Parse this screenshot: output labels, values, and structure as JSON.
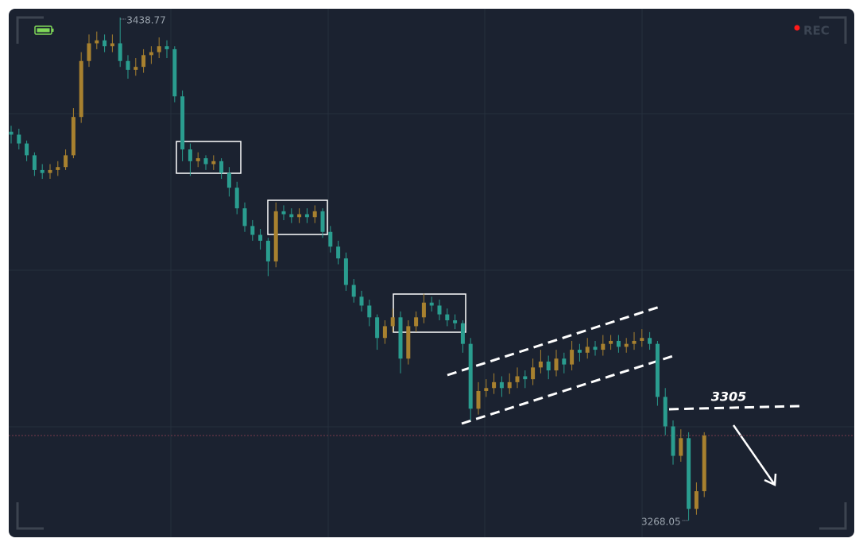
{
  "chart_data": {
    "type": "candlestick",
    "rec_label": "REC",
    "level_label": 3305,
    "up_color": "#a8812f",
    "down_color": "#2a9d8f",
    "ylim": [
      3259.4,
      3444.7
    ],
    "ohlc": [
      [
        3400,
        3402,
        3396,
        3399
      ],
      [
        3399,
        3401,
        3394,
        3396
      ],
      [
        3396,
        3397,
        3390,
        3392
      ],
      [
        3392,
        3393,
        3385,
        3387
      ],
      [
        3387,
        3389,
        3384,
        3386
      ],
      [
        3386,
        3389,
        3384,
        3387
      ],
      [
        3387,
        3390,
        3385,
        3388
      ],
      [
        3388,
        3394,
        3387,
        3392
      ],
      [
        3392,
        3408,
        3391,
        3405
      ],
      [
        3405,
        3427,
        3403,
        3424
      ],
      [
        3424,
        3433,
        3422,
        3430
      ],
      [
        3430,
        3434,
        3428,
        3431
      ],
      [
        3431,
        3433,
        3427,
        3429
      ],
      [
        3429,
        3433,
        3427,
        3430
      ],
      [
        3430,
        3438.77,
        3422,
        3424
      ],
      [
        3424,
        3426,
        3418,
        3421
      ],
      [
        3421,
        3425,
        3419,
        3422
      ],
      [
        3422,
        3428,
        3420,
        3426
      ],
      [
        3426,
        3429,
        3423,
        3427
      ],
      [
        3427,
        3432,
        3425,
        3429
      ],
      [
        3429,
        3431,
        3425,
        3428
      ],
      [
        3428,
        3429,
        3410,
        3412
      ],
      [
        3412,
        3414,
        3390,
        3394
      ],
      [
        3394,
        3396,
        3385,
        3390
      ],
      [
        3390,
        3393,
        3388,
        3391
      ],
      [
        3391,
        3392,
        3387,
        3389
      ],
      [
        3389,
        3392,
        3387,
        3390
      ],
      [
        3390,
        3391,
        3384,
        3386
      ],
      [
        3386,
        3388,
        3378,
        3381
      ],
      [
        3381,
        3383,
        3372,
        3374
      ],
      [
        3374,
        3376,
        3366,
        3368
      ],
      [
        3368,
        3370,
        3363,
        3365
      ],
      [
        3365,
        3367,
        3360,
        3363
      ],
      [
        3363,
        3364,
        3351,
        3356
      ],
      [
        3356,
        3376,
        3354,
        3373
      ],
      [
        3373,
        3375,
        3370,
        3372
      ],
      [
        3372,
        3374,
        3369,
        3371
      ],
      [
        3371,
        3374,
        3369,
        3372
      ],
      [
        3372,
        3374,
        3369,
        3371
      ],
      [
        3371,
        3375,
        3369,
        3373
      ],
      [
        3373,
        3374,
        3364,
        3366
      ],
      [
        3366,
        3368,
        3359,
        3361
      ],
      [
        3361,
        3363,
        3355,
        3357
      ],
      [
        3357,
        3359,
        3346,
        3348
      ],
      [
        3348,
        3350,
        3342,
        3344
      ],
      [
        3344,
        3346,
        3339,
        3341
      ],
      [
        3341,
        3343,
        3334,
        3337
      ],
      [
        3337,
        3338,
        3326,
        3330
      ],
      [
        3330,
        3336,
        3328,
        3334
      ],
      [
        3334,
        3340,
        3332,
        3337
      ],
      [
        3337,
        3339,
        3318,
        3323
      ],
      [
        3323,
        3336,
        3321,
        3334
      ],
      [
        3334,
        3339,
        3332,
        3337
      ],
      [
        3337,
        3345,
        3335,
        3342
      ],
      [
        3342,
        3344,
        3339,
        3341
      ],
      [
        3341,
        3343,
        3336,
        3338
      ],
      [
        3338,
        3340,
        3334,
        3336
      ],
      [
        3336,
        3338,
        3333,
        3335
      ],
      [
        3335,
        3336,
        3325,
        3328
      ],
      [
        3328,
        3330,
        3302,
        3306
      ],
      [
        3306,
        3315,
        3304,
        3312
      ],
      [
        3312,
        3316,
        3310,
        3313
      ],
      [
        3313,
        3318,
        3311,
        3315
      ],
      [
        3315,
        3317,
        3310,
        3313
      ],
      [
        3313,
        3318,
        3311,
        3315
      ],
      [
        3315,
        3320,
        3313,
        3317
      ],
      [
        3317,
        3319,
        3313,
        3316
      ],
      [
        3316,
        3323,
        3314,
        3320
      ],
      [
        3320,
        3326,
        3318,
        3322
      ],
      [
        3322,
        3324,
        3316,
        3319
      ],
      [
        3319,
        3326,
        3317,
        3323
      ],
      [
        3323,
        3325,
        3318,
        3321
      ],
      [
        3321,
        3329,
        3319,
        3326
      ],
      [
        3326,
        3328,
        3322,
        3325
      ],
      [
        3325,
        3330,
        3323,
        3327
      ],
      [
        3327,
        3329,
        3324,
        3326
      ],
      [
        3326,
        3331,
        3324,
        3328
      ],
      [
        3328,
        3331,
        3326,
        3329
      ],
      [
        3329,
        3331,
        3325,
        3327
      ],
      [
        3327,
        3330,
        3325,
        3328
      ],
      [
        3328,
        3332,
        3326,
        3329
      ],
      [
        3329,
        3333,
        3327,
        3330
      ],
      [
        3330,
        3332,
        3326,
        3328
      ],
      [
        3328,
        3329,
        3307,
        3310
      ],
      [
        3310,
        3313,
        3297,
        3300
      ],
      [
        3300,
        3302,
        3287,
        3290
      ],
      [
        3290,
        3299,
        3288,
        3296
      ],
      [
        3296,
        3298,
        3268.05,
        3272
      ],
      [
        3272,
        3281,
        3270,
        3278
      ],
      [
        3278,
        3298,
        3276,
        3296.9
      ]
    ]
  }
}
